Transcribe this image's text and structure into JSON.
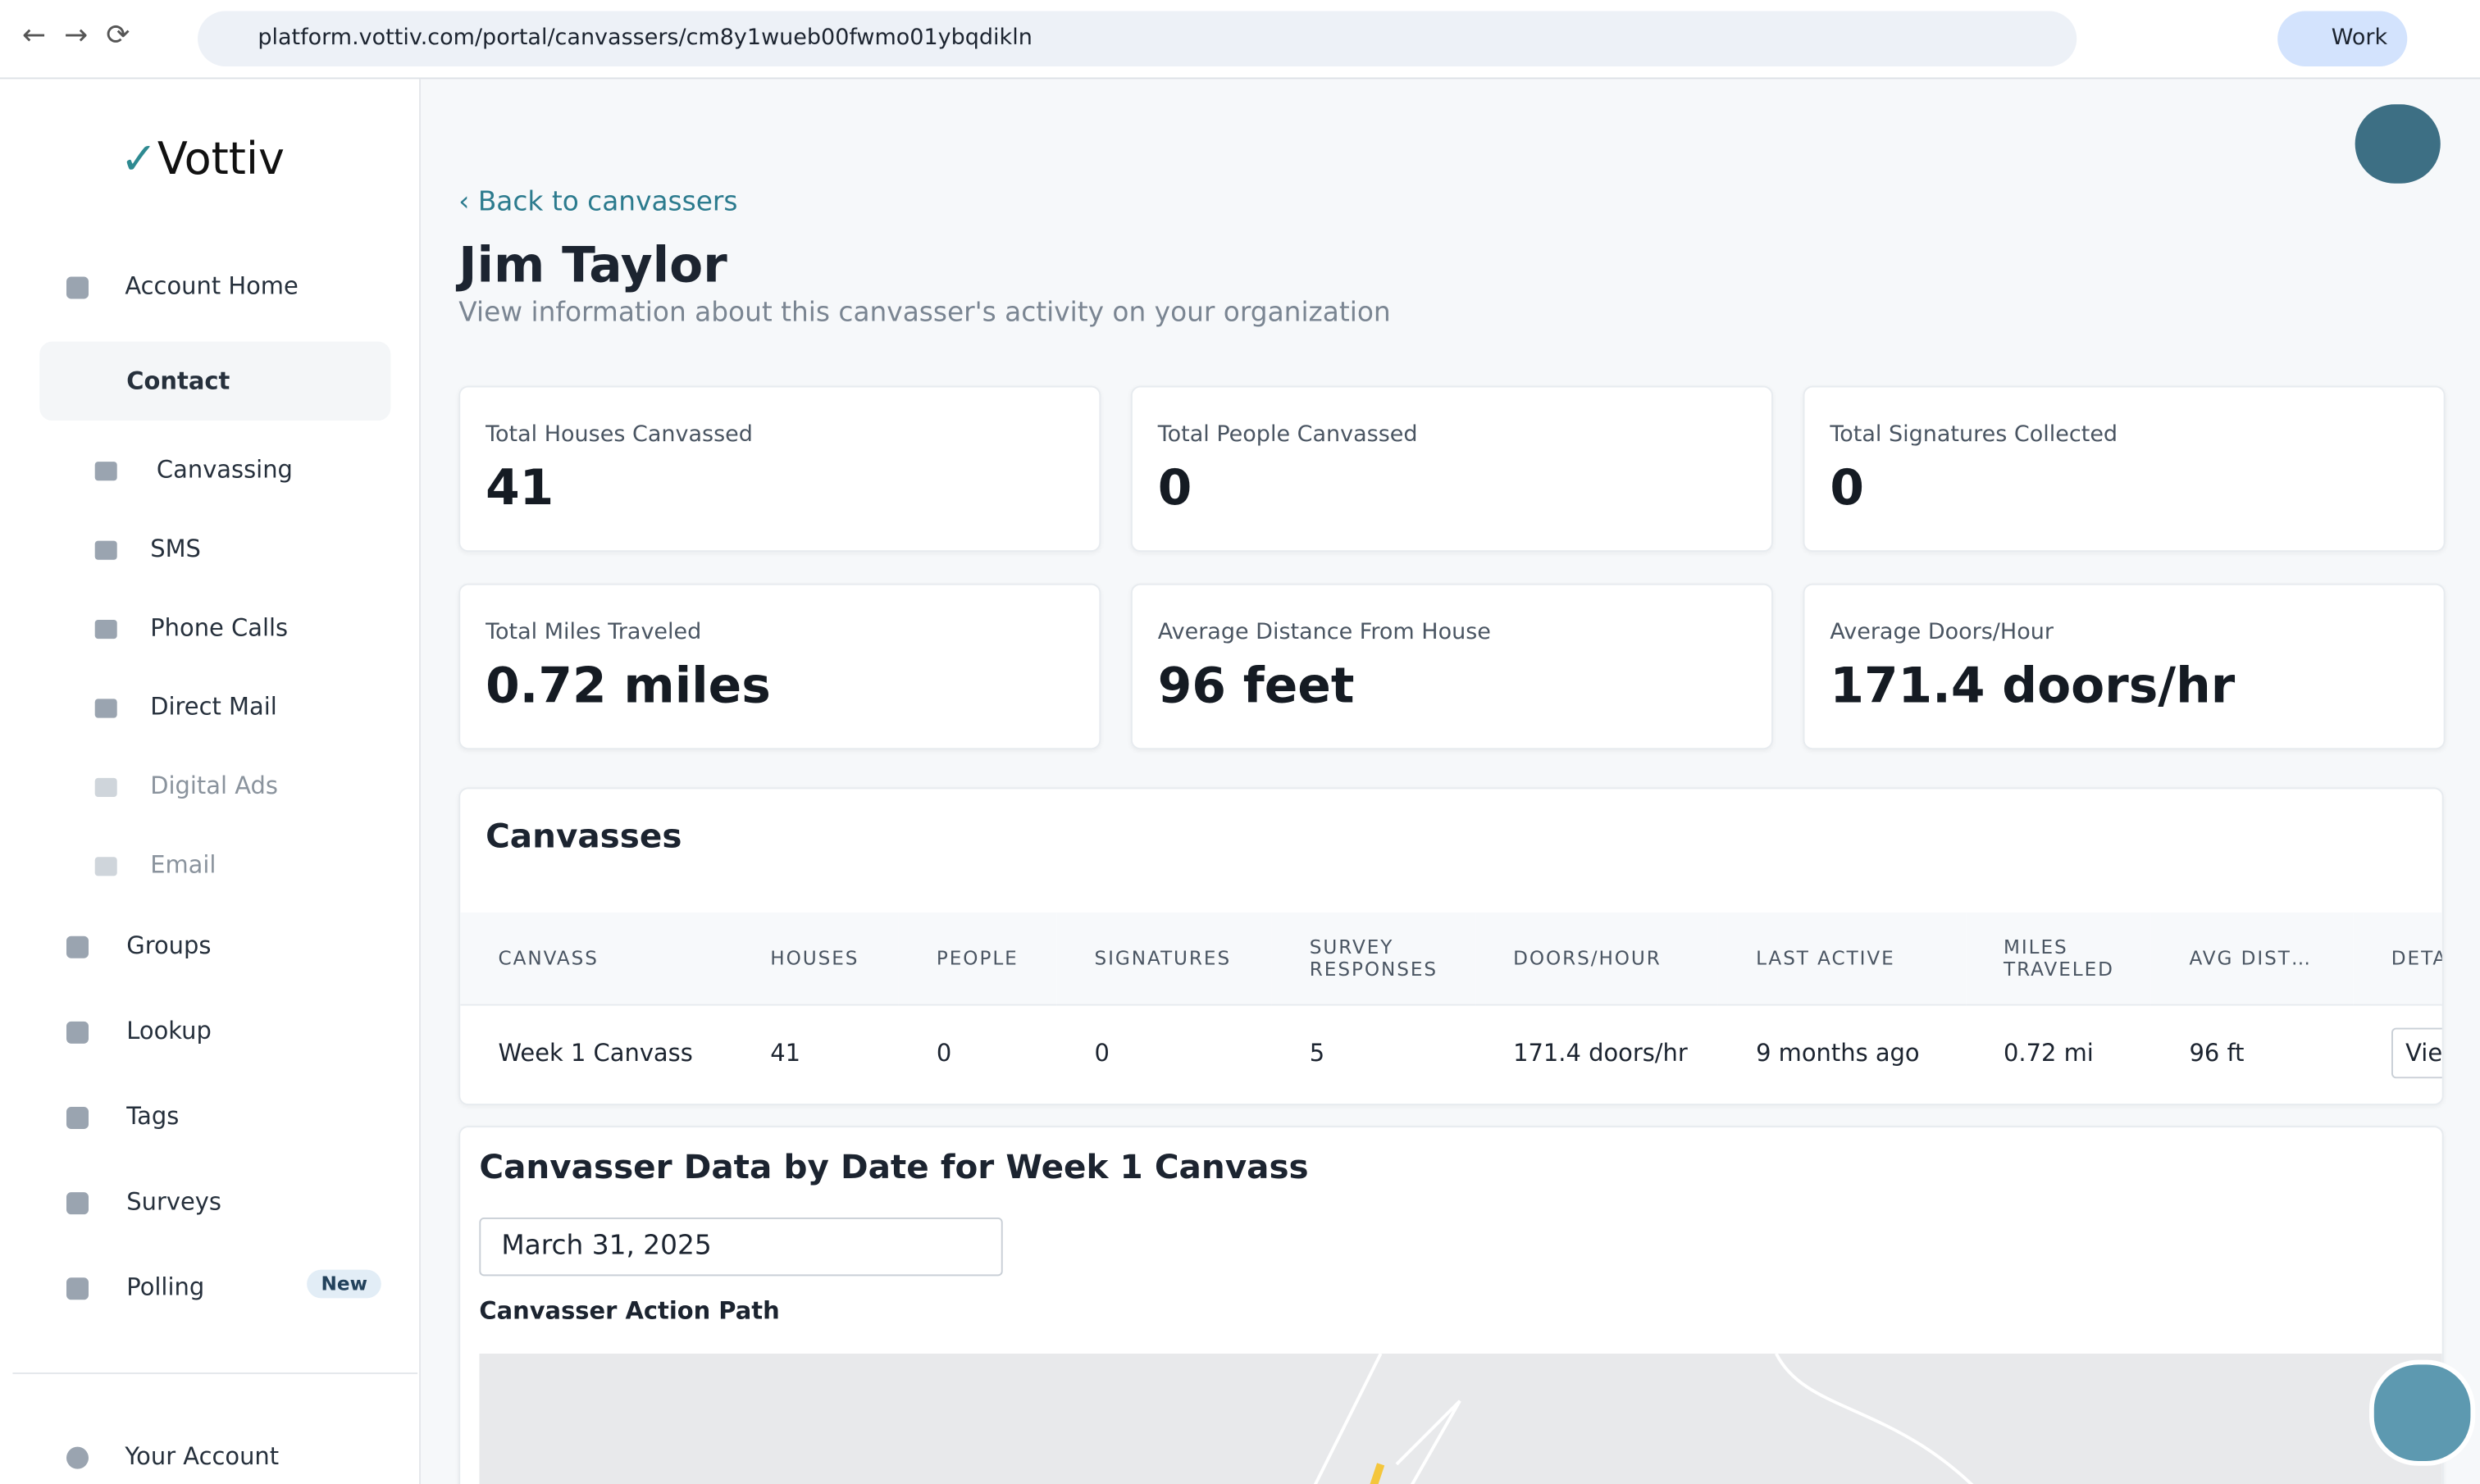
{
  "browser": {
    "url": "platform.vottiv.com/portal/canvassers/cm8y1wueb00fwmo01ybqdikln",
    "profile": "Work"
  },
  "sidebar": {
    "logo": "Vottiv",
    "home": "Account Home",
    "contact": "Contact",
    "contact_items": [
      "Canvassing",
      "SMS",
      "Phone Calls",
      "Direct Mail",
      "Digital Ads",
      "Email"
    ],
    "items": [
      "Groups",
      "Lookup",
      "Tags",
      "Surveys",
      "Polling"
    ],
    "badge": "New",
    "account": "Your Account"
  },
  "header": {
    "back": "Back to canvassers",
    "title": "Jim Taylor",
    "subtitle": "View information about this canvasser's activity on your organization"
  },
  "stats": [
    {
      "label": "Total Houses Canvassed",
      "value": "41"
    },
    {
      "label": "Total People Canvassed",
      "value": "0"
    },
    {
      "label": "Total Signatures Collected",
      "value": "0"
    },
    {
      "label": "Total Miles Traveled",
      "value": "0.72 miles"
    },
    {
      "label": "Average Distance From House",
      "value": "96 feet"
    },
    {
      "label": "Average Doors/Hour",
      "value": "171.4 doors/hr"
    }
  ],
  "table": {
    "title": "Canvasses",
    "headers": [
      "CANVASS",
      "HOUSES",
      "PEOPLE",
      "SIGNATURES",
      "SURVEY RESPONSES",
      "DOORS/HOUR",
      "LAST ACTIVE",
      "MILES TRAVELED",
      "AVG DIST…",
      "DETA"
    ],
    "rows": [
      [
        "Week 1 Canvass",
        "41",
        "0",
        "0",
        "5",
        "171.4 doors/hr",
        "9 months ago",
        "0.72 mi",
        "96 ft",
        "View Da"
      ]
    ]
  },
  "detail": {
    "title": "Canvasser Data by Date for Week 1 Canvass",
    "date": "March 31, 2025",
    "path_label": "Canvasser Action Path"
  }
}
